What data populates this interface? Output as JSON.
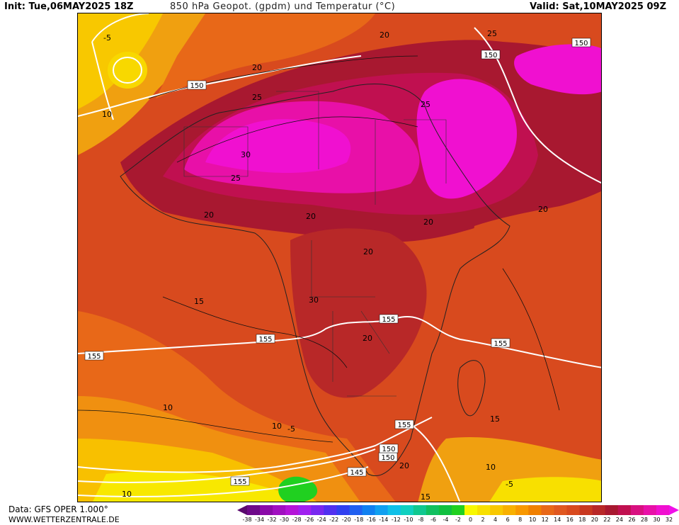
{
  "header": {
    "init": "Init: Tue,06MAY2025 18Z",
    "title": "850 hPa Geopot. (gpdm) und Temperatur (°C)",
    "valid": "Valid: Sat,10MAY2025 09Z"
  },
  "footer": {
    "data_source": "Data: GFS OPER 1.000°",
    "website": "WWW.WETTERZENTRALE.DE"
  },
  "legend": {
    "unit": "°C",
    "levels": [
      "-38",
      "-34",
      "-32",
      "-30",
      "-28",
      "-26",
      "-24",
      "-22",
      "-20",
      "-18",
      "-16",
      "-14",
      "-12",
      "-10",
      "-8",
      "-6",
      "-4",
      "-2",
      "0",
      "2",
      "4",
      "6",
      "8",
      "10",
      "12",
      "14",
      "16",
      "18",
      "20",
      "22",
      "24",
      "26",
      "28",
      "30",
      "32"
    ],
    "colors": [
      "#5a0a6e",
      "#6e0a8a",
      "#8a0aa8",
      "#a010c0",
      "#b414d8",
      "#a020f0",
      "#7828f0",
      "#5030f0",
      "#3040f0",
      "#2060f0",
      "#1080f0",
      "#10a0f0",
      "#10c0e8",
      "#10d0c0",
      "#10c890",
      "#10c060",
      "#10c040",
      "#20d020",
      "#f8f800",
      "#f8e000",
      "#f8c800",
      "#f8b000",
      "#f89800",
      "#f08000",
      "#e86818",
      "#e05820",
      "#d84a1e",
      "#c83820",
      "#b82828",
      "#a81830",
      "#c01050",
      "#d81080",
      "#e810a8",
      "#f010d0",
      "#f010e8"
    ]
  },
  "map": {
    "geopotential_labels": [
      "150",
      "150",
      "150",
      "150",
      "155",
      "155",
      "155",
      "155",
      "155",
      "150",
      "145",
      "155"
    ],
    "temperature_labels": [
      "-5",
      "10",
      "20",
      "25",
      "30",
      "25",
      "25",
      "20",
      "20",
      "20",
      "20",
      "30",
      "20",
      "15",
      "20",
      "15",
      "10",
      "10",
      "-5",
      "20",
      "15",
      "10",
      "-5",
      "10",
      "25",
      "20"
    ]
  }
}
